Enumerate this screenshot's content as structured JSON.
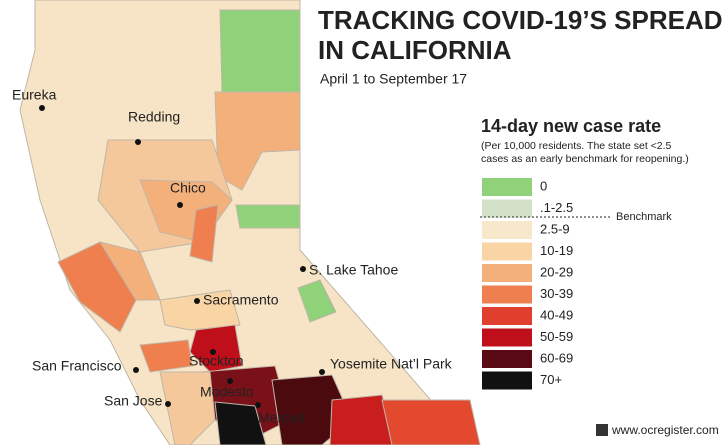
{
  "header": {
    "title": [
      "TRACKING COVID-19’S SPREAD",
      "IN CALIFORNIA"
    ],
    "subtitle": "April 1 to September 17"
  },
  "legend": {
    "title": "14-day new case rate",
    "note": [
      "(Per 10,000 residents. The state set <2.5",
      "cases as an early benchmark for reopening.)"
    ],
    "items": [
      {
        "label": "0",
        "color": "#8fd27a"
      },
      {
        "label": ".1-2.5",
        "color": "#d3e2c6"
      },
      {
        "label": "2.5-9",
        "color": "#f7e8cc"
      },
      {
        "label": "10-19",
        "color": "#f9d4a4"
      },
      {
        "label": "20-29",
        "color": "#f4b07a"
      },
      {
        "label": "30-39",
        "color": "#ef7f4f"
      },
      {
        "label": "40-49",
        "color": "#df3f2c"
      },
      {
        "label": "50-59",
        "color": "#bf0f1a"
      },
      {
        "label": "60-69",
        "color": "#5a0a14"
      },
      {
        "label": "70+",
        "color": "#111111"
      }
    ],
    "benchmark": "Benchmark"
  },
  "cities": [
    "Eureka",
    "Redding",
    "Chico",
    "S. Lake Tahoe",
    "Sacramento",
    "San Francisco",
    "Stockton",
    "Yosemite Nat’l Park",
    "Modesto",
    "San Jose",
    "Merced"
  ],
  "watermark": "www.ocregister.com"
}
